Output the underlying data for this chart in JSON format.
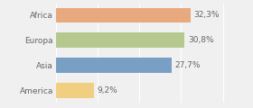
{
  "categories": [
    "Africa",
    "Europa",
    "Asia",
    "America"
  ],
  "values": [
    32.3,
    30.8,
    27.7,
    9.2
  ],
  "labels": [
    "32,3%",
    "30,8%",
    "27,7%",
    "9,2%"
  ],
  "bar_colors": [
    "#e8a97e",
    "#b5c98e",
    "#7a9fc4",
    "#f0d080"
  ],
  "background_color": "#f0f0f0",
  "xlim": [
    0,
    46
  ],
  "label_fontsize": 6.5,
  "tick_fontsize": 6.5,
  "bar_height": 0.6
}
